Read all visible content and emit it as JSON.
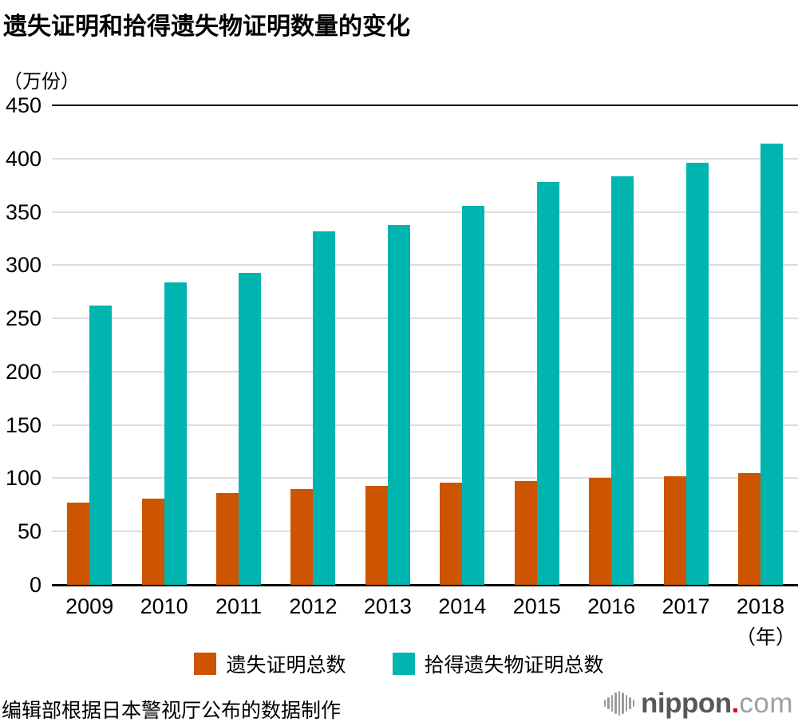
{
  "title": "遗失证明和拾得遗失物证明数量的变化",
  "y_unit_label": "（万份）",
  "x_unit_label": "（年）",
  "legend": [
    {
      "label": "遗失证明总数",
      "color": "#CD5401"
    },
    {
      "label": "拾得遗失物证明总数",
      "color": "#00B4AF"
    }
  ],
  "footer": {
    "source": "编辑部根据日本警视厅公布的数据制作",
    "logo": {
      "brand": "nippon",
      "dot": ".",
      "tld": "com"
    }
  },
  "chart_data": {
    "type": "bar",
    "title": "遗失证明和拾得遗失物证明数量的变化",
    "ylabel": "（万份）",
    "xlabel": "（年）",
    "categories": [
      "2009",
      "2010",
      "2011",
      "2012",
      "2013",
      "2014",
      "2015",
      "2016",
      "2017",
      "2018"
    ],
    "series": [
      {
        "name": "遗失证明总数",
        "color": "#CD5401",
        "values": [
          77,
          81,
          86,
          90,
          93,
          96,
          97,
          100,
          102,
          105
        ]
      },
      {
        "name": "拾得遗失物证明总数",
        "color": "#00B4AF",
        "values": [
          262,
          284,
          293,
          332,
          338,
          356,
          378,
          383,
          396,
          414
        ]
      }
    ],
    "ylim": [
      0,
      450
    ],
    "ytick_step": 50,
    "grid": true,
    "legend_position": "bottom"
  }
}
